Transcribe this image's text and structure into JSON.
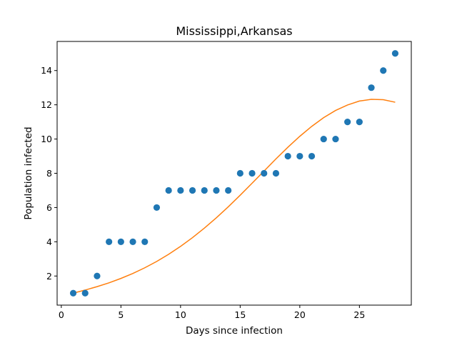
{
  "chart_data": {
    "type": "scatter",
    "title": "Mississippi,Arkansas",
    "xlabel": "Days since infection",
    "ylabel": "Population infected",
    "xlim": [
      -0.35,
      29.35
    ],
    "ylim": [
      0.3,
      15.7
    ],
    "xticks": [
      0,
      5,
      10,
      15,
      20,
      25
    ],
    "yticks": [
      2,
      4,
      6,
      8,
      10,
      12,
      14
    ],
    "grid": false,
    "series": [
      {
        "kind": "scatter",
        "color": "#1f77b4",
        "x": [
          1,
          2,
          3,
          4,
          5,
          6,
          7,
          8,
          9,
          10,
          11,
          12,
          13,
          14,
          15,
          16,
          17,
          18,
          19,
          20,
          21,
          22,
          23,
          24,
          25,
          26,
          27,
          28
        ],
        "y": [
          1,
          1,
          2,
          4,
          4,
          4,
          4,
          6,
          7,
          7,
          7,
          7,
          7,
          7,
          8,
          8,
          8,
          8,
          9,
          9,
          9,
          10,
          10,
          11,
          11,
          13,
          14,
          15
        ]
      },
      {
        "kind": "line",
        "color": "#ff7f0e",
        "x": [
          1,
          2,
          3,
          4,
          5,
          6,
          7,
          8,
          9,
          10,
          11,
          12,
          13,
          14,
          15,
          16,
          17,
          18,
          19,
          20,
          21,
          22,
          23,
          24,
          25,
          26,
          27,
          28
        ],
        "y": [
          1.0,
          1.18,
          1.38,
          1.6,
          1.86,
          2.15,
          2.48,
          2.85,
          3.27,
          3.73,
          4.24,
          4.8,
          5.4,
          6.04,
          6.72,
          7.42,
          8.13,
          8.84,
          9.52,
          10.16,
          10.74,
          11.25,
          11.67,
          11.99,
          12.22,
          12.32,
          12.3,
          12.15
        ]
      }
    ]
  }
}
